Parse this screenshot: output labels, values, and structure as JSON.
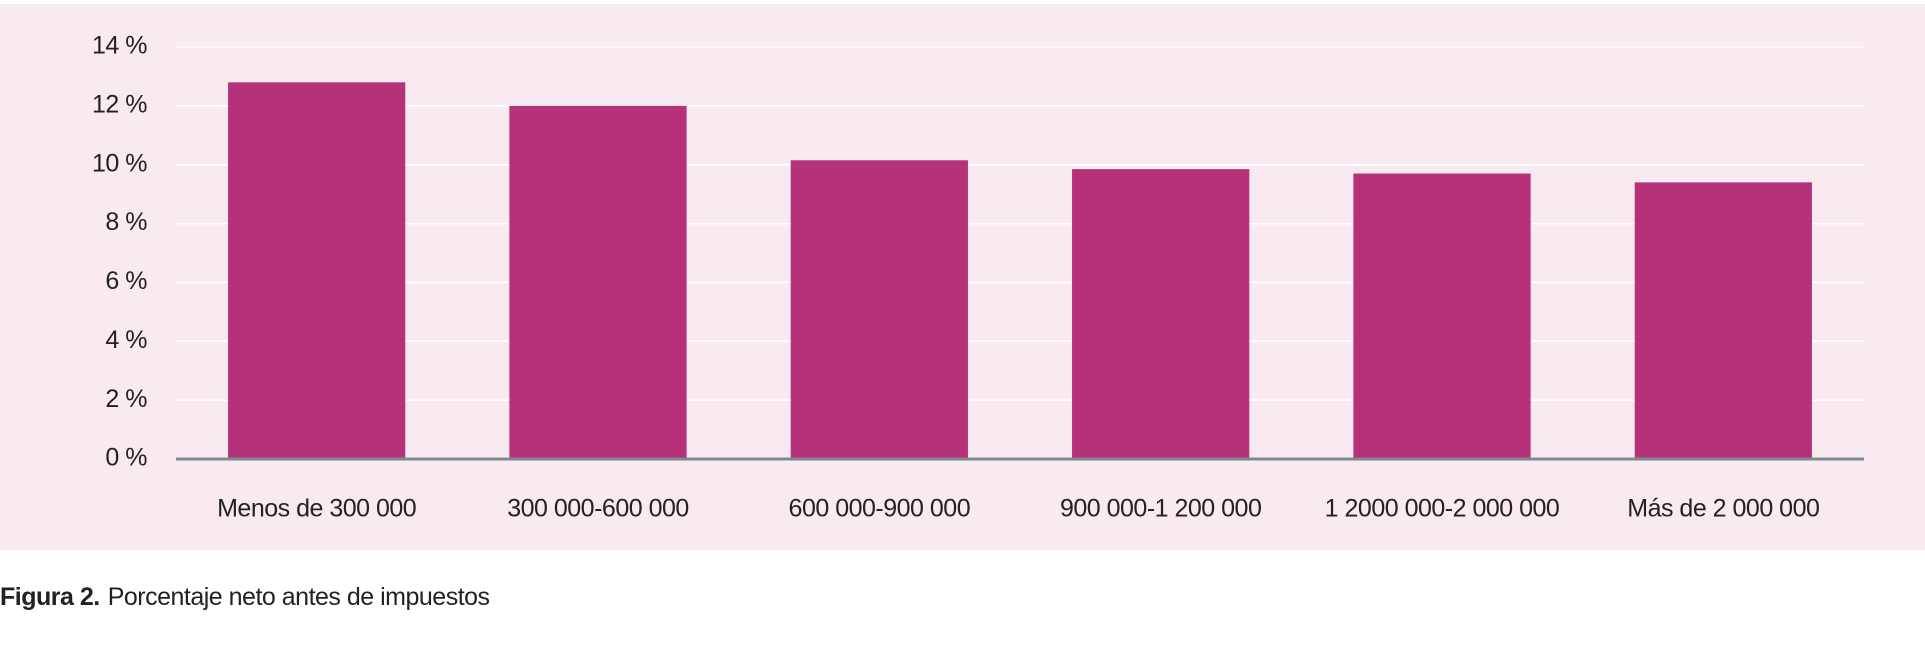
{
  "chart_data": {
    "type": "bar",
    "categories": [
      "Menos de 300 000",
      "300 000-600 000",
      "600 000-900 000",
      "900 000-1 200 000",
      "1 2000 000-2 000 000",
      "Más de 2 000 000"
    ],
    "values": [
      12.8,
      12.0,
      10.15,
      9.85,
      9.7,
      9.4
    ],
    "color": "#b5317a",
    "ylim": [
      0,
      14
    ],
    "yticks": [
      {
        "value": 0,
        "label": "0 %"
      },
      {
        "value": 2,
        "label": "2 %"
      },
      {
        "value": 4,
        "label": "4 %"
      },
      {
        "value": 6,
        "label": "6 %"
      },
      {
        "value": 8,
        "label": "8 %"
      },
      {
        "value": 10,
        "label": "10 %"
      },
      {
        "value": 12,
        "label": "12 %"
      },
      {
        "value": 14,
        "label": "14 %"
      }
    ],
    "grid": true,
    "caption": {
      "label": "Figura 2.",
      "text": "Porcentaje neto antes de impuestos"
    }
  }
}
